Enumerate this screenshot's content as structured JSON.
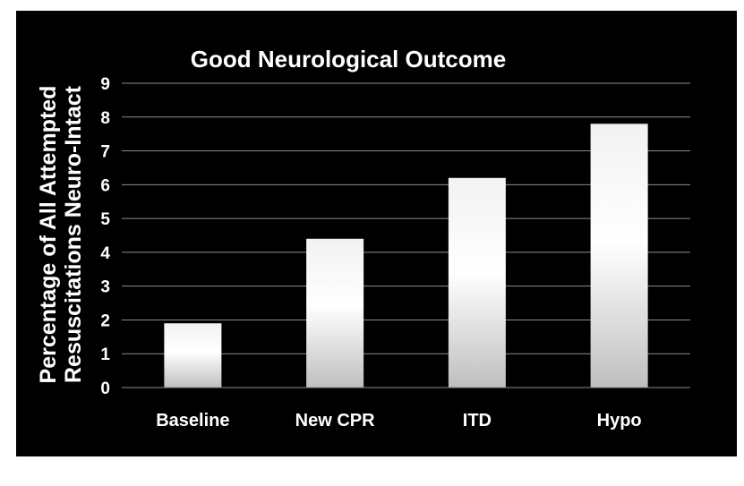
{
  "chart_data": {
    "type": "bar",
    "title": "Good Neurological Outcome",
    "ylabel_lines": [
      "Percentage of All Attempted",
      "Resuscitations Neuro-Intact"
    ],
    "xlabel": "",
    "categories": [
      "Baseline",
      "New CPR",
      "ITD",
      "Hypo"
    ],
    "values": [
      1.9,
      4.4,
      6.2,
      7.8
    ],
    "ylim": [
      0,
      9
    ],
    "yticks": [
      "0",
      "1",
      "2",
      "3",
      "4",
      "5",
      "6",
      "7",
      "8",
      "9"
    ],
    "grid": true,
    "legend": "none",
    "colors": {
      "background": "#000000",
      "text": "#ffffff",
      "bar_top": "#f2f2f2",
      "bar_mid": "#ffffff",
      "bar_bottom": "#bfbfbf",
      "grid": "#8c8c8c"
    }
  }
}
